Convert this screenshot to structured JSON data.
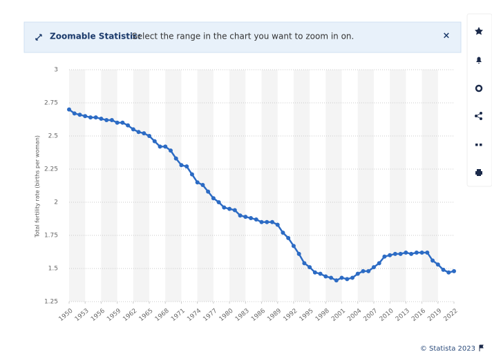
{
  "banner": {
    "title": "Zoomable Statistic:",
    "text": "Select the range in the chart you want to zoom in on.",
    "close": "×"
  },
  "chart_data": {
    "type": "line",
    "y_label": "Total fertility rate (births per woman)",
    "x": [
      1950,
      1951,
      1952,
      1953,
      1954,
      1955,
      1956,
      1957,
      1958,
      1959,
      1960,
      1961,
      1962,
      1963,
      1964,
      1965,
      1966,
      1967,
      1968,
      1969,
      1970,
      1971,
      1972,
      1973,
      1974,
      1975,
      1976,
      1977,
      1978,
      1979,
      1980,
      1981,
      1982,
      1983,
      1984,
      1985,
      1986,
      1987,
      1988,
      1989,
      1990,
      1991,
      1992,
      1993,
      1994,
      1995,
      1996,
      1997,
      1998,
      1999,
      2000,
      2001,
      2002,
      2003,
      2004,
      2005,
      2006,
      2007,
      2008,
      2009,
      2010,
      2011,
      2012,
      2013,
      2014,
      2015,
      2016,
      2017,
      2018,
      2019,
      2020,
      2021,
      2022
    ],
    "series": [
      {
        "name": "Total fertility rate",
        "color": "#2c6bc4",
        "values": [
          2.7,
          2.67,
          2.66,
          2.65,
          2.64,
          2.64,
          2.63,
          2.62,
          2.62,
          2.6,
          2.6,
          2.58,
          2.55,
          2.53,
          2.52,
          2.5,
          2.46,
          2.42,
          2.42,
          2.39,
          2.33,
          2.28,
          2.27,
          2.21,
          2.15,
          2.13,
          2.08,
          2.03,
          2.0,
          1.96,
          1.95,
          1.94,
          1.9,
          1.89,
          1.88,
          1.87,
          1.85,
          1.85,
          1.85,
          1.83,
          1.77,
          1.73,
          1.67,
          1.61,
          1.54,
          1.51,
          1.47,
          1.46,
          1.44,
          1.43,
          1.41,
          1.43,
          1.42,
          1.43,
          1.46,
          1.48,
          1.48,
          1.51,
          1.54,
          1.59,
          1.6,
          1.61,
          1.61,
          1.62,
          1.61,
          1.62,
          1.62,
          1.62,
          1.56,
          1.53,
          1.49,
          1.47,
          1.48
        ]
      }
    ],
    "xlim": [
      1950,
      2022
    ],
    "xticks": [
      1950,
      1953,
      1956,
      1959,
      1962,
      1965,
      1968,
      1971,
      1974,
      1977,
      1980,
      1983,
      1986,
      1989,
      1992,
      1995,
      1998,
      2001,
      2004,
      2007,
      2010,
      2013,
      2016,
      2019,
      2022
    ],
    "ylim": [
      1.25,
      3
    ],
    "yticks": [
      1.25,
      1.5,
      1.75,
      2,
      2.25,
      2.5,
      2.75,
      3
    ],
    "grid": true
  },
  "footer": {
    "credit": "© Statista 2023"
  }
}
